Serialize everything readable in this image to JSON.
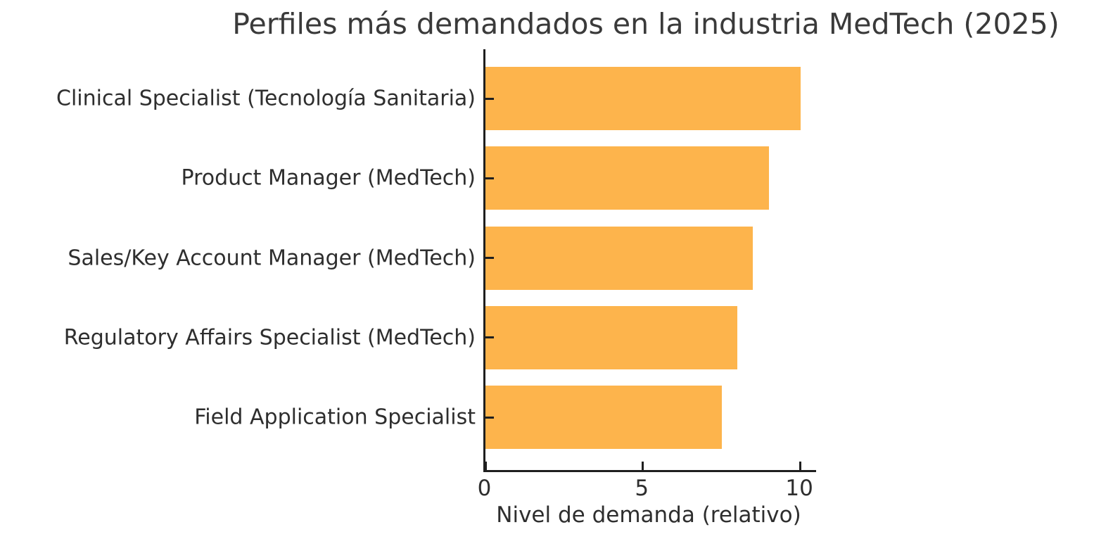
{
  "chart_data": {
    "type": "bar",
    "orientation": "horizontal",
    "title": "Perfiles más demandados en la industria MedTech (2025)",
    "xlabel": "Nivel de demanda (relativo)",
    "ylabel": "",
    "categories": [
      "Clinical Specialist (Tecnología Sanitaria)",
      "Product Manager (MedTech)",
      "Sales/Key Account Manager (MedTech)",
      "Regulatory Affairs Specialist (MedTech)",
      "Field Application Specialist"
    ],
    "values": [
      10,
      9,
      8.5,
      8,
      7.5
    ],
    "xlim": [
      0,
      10.5
    ],
    "xticks": [
      0,
      5,
      10
    ],
    "bar_color": "#FDB44C",
    "axis_color": "#1f1f1f",
    "text_color": "#2e2e2e",
    "background": "#ffffff",
    "grid": false,
    "legend": null,
    "tick_direction": "in"
  }
}
